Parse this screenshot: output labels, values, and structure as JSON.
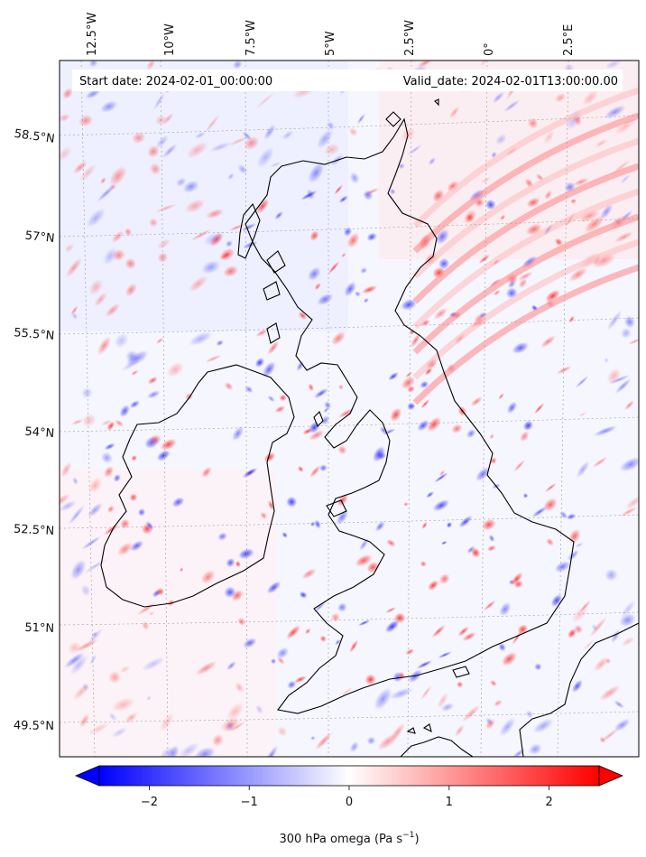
{
  "header": {
    "start_date": "Start date: 2024-02-01_00:00:00",
    "valid_date": "Valid_date: 2024-02-01T13:00:00.00"
  },
  "map": {
    "lon_labels": [
      "12.5°W",
      "10°W",
      "7.5°W",
      "5°W",
      "2.5°W",
      "0°",
      "2.5°E"
    ],
    "lat_labels": [
      "58.5°N",
      "57°N",
      "55.5°N",
      "54°N",
      "52.5°N",
      "51°N",
      "49.5°N"
    ],
    "colors": {
      "negative": "#0000ff",
      "neutral": "#ffffff",
      "positive": "#ff0000",
      "coastline": "#000000",
      "gridline": "#9a9a9a"
    }
  },
  "colorbar": {
    "ticks": [
      {
        "value": -2,
        "label": "−2"
      },
      {
        "value": -1,
        "label": "−1"
      },
      {
        "value": 0,
        "label": "0"
      },
      {
        "value": 1,
        "label": "1"
      },
      {
        "value": 2,
        "label": "2"
      }
    ],
    "vmin": -2.5,
    "vmax": 2.5,
    "label_prefix": "300 hPa omega (Pa s",
    "label_exp": "−1",
    "label_suffix": ")"
  }
}
